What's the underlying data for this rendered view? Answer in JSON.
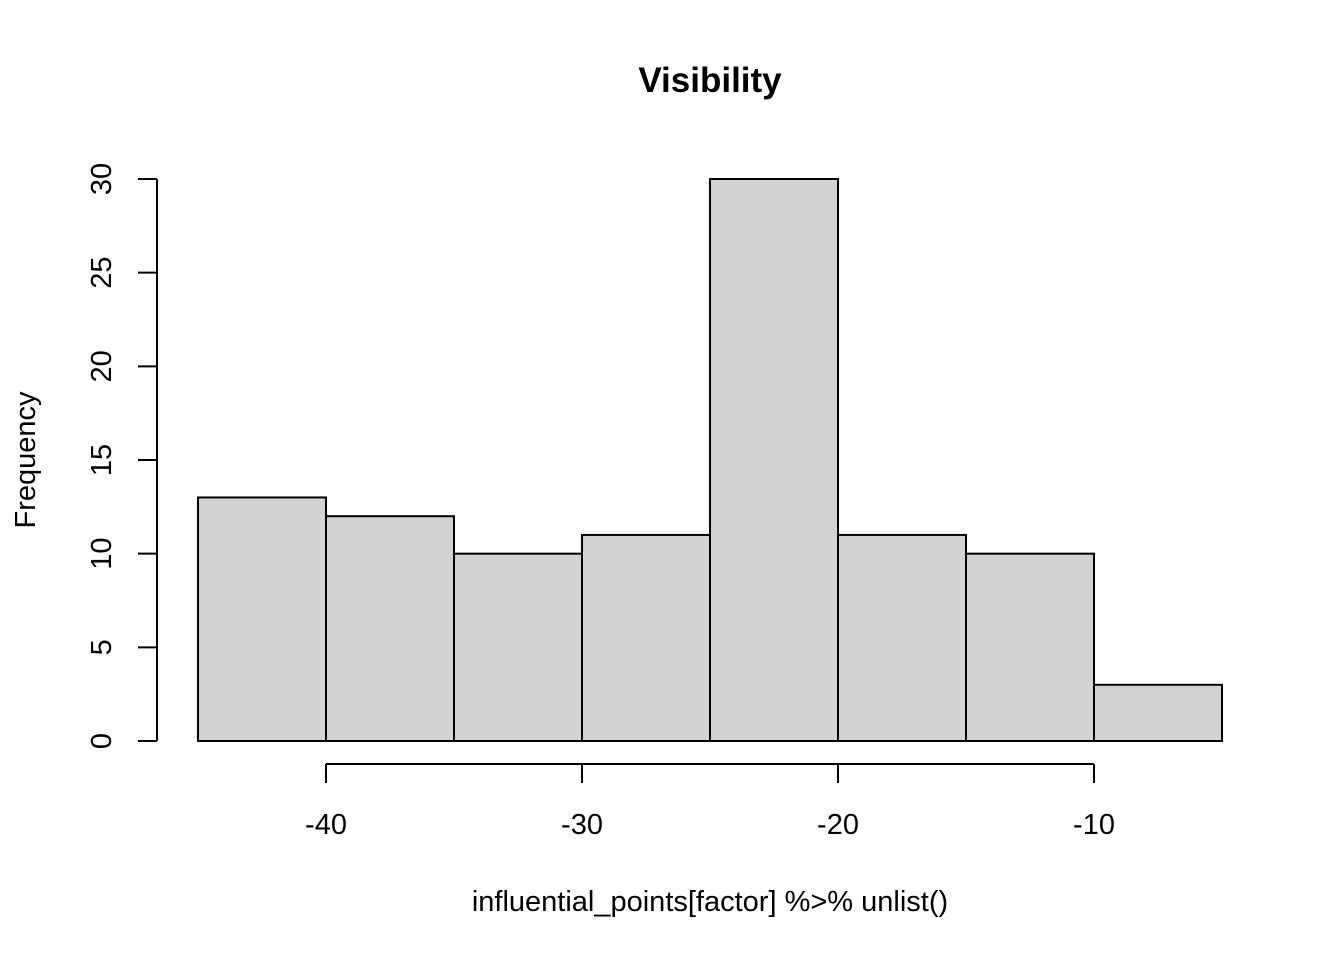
{
  "chart_data": {
    "type": "bar",
    "subtype": "histogram",
    "title": "Visibility",
    "xlabel": "influential_points[factor] %>% unlist()",
    "ylabel": "Frequency",
    "bins": [
      {
        "x0": -45,
        "x1": -40,
        "count": 13
      },
      {
        "x0": -40,
        "x1": -35,
        "count": 12
      },
      {
        "x0": -35,
        "x1": -30,
        "count": 10
      },
      {
        "x0": -30,
        "x1": -25,
        "count": 11
      },
      {
        "x0": -25,
        "x1": -20,
        "count": 30
      },
      {
        "x0": -20,
        "x1": -15,
        "count": 11
      },
      {
        "x0": -15,
        "x1": -10,
        "count": 10
      },
      {
        "x0": -10,
        "x1": -5,
        "count": 3
      }
    ],
    "xlim": [
      -45,
      -5
    ],
    "ylim": [
      0,
      30
    ],
    "x_ticks": [
      -40,
      -30,
      -20,
      -10
    ],
    "x_tick_labels": [
      "-40",
      "-30",
      "-20",
      "-10"
    ],
    "y_ticks": [
      0,
      5,
      10,
      15,
      20,
      25,
      30
    ],
    "y_tick_labels": [
      "0",
      "5",
      "10",
      "15",
      "20",
      "25",
      "30"
    ],
    "bar_color": "#d3d3d3",
    "grid": false,
    "legend": "none"
  }
}
